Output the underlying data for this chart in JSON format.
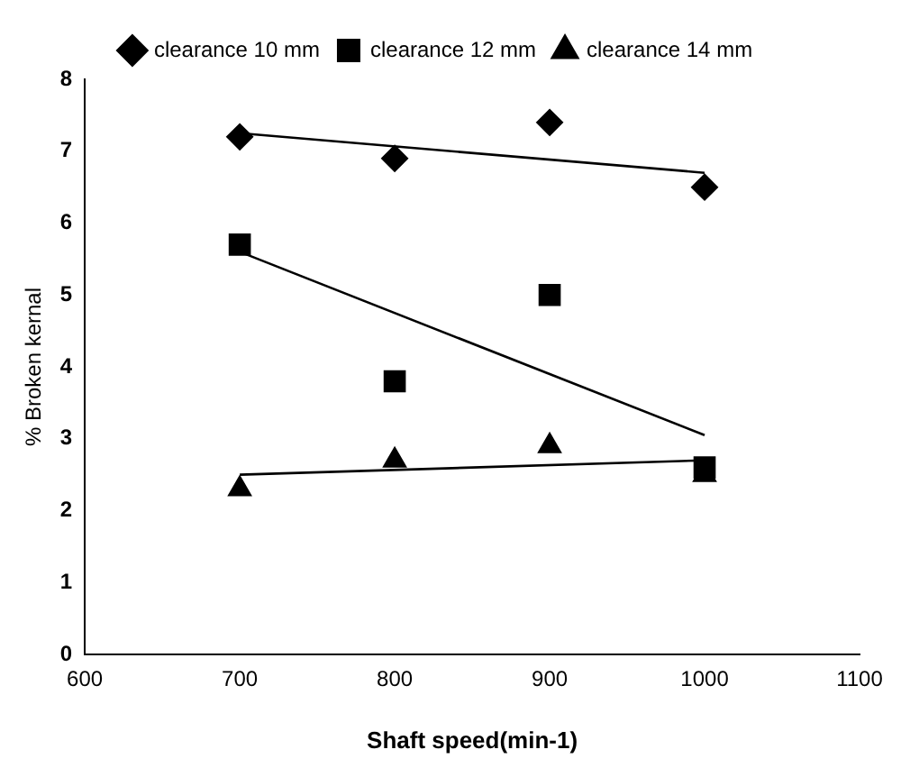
{
  "chart_data": {
    "type": "scatter",
    "xlabel": "Shaft speed(min-1)",
    "ylabel": "% Broken kernal",
    "xlim": [
      600,
      1100
    ],
    "xticks": [
      600,
      700,
      800,
      900,
      1000,
      1100
    ],
    "ylim": [
      0,
      8
    ],
    "yticks": [
      0,
      1,
      2,
      3,
      4,
      5,
      6,
      7,
      8
    ],
    "grid": false,
    "legend": "top",
    "series": [
      {
        "name": "clearance 10 mm",
        "type": "scatter",
        "marker": "diamond",
        "color": "#000000",
        "x": [
          700,
          800,
          900,
          1000
        ],
        "values": [
          7.2,
          6.9,
          7.4,
          6.5
        ]
      },
      {
        "name": "clearance 12 mm",
        "type": "scatter",
        "marker": "square",
        "color": "#000000",
        "x": [
          700,
          800,
          900,
          1000
        ],
        "values": [
          5.7,
          3.8,
          5.0,
          2.6
        ]
      },
      {
        "name": "clearance 14 mm",
        "type": "scatter",
        "marker": "triangle",
        "color": "#000000",
        "x": [
          700,
          800,
          900,
          1000
        ],
        "values": [
          2.3,
          2.7,
          2.9,
          2.5
        ]
      },
      {
        "type": "line",
        "color": "#000000",
        "x": [
          700,
          1000
        ],
        "values": [
          7.25,
          6.7
        ]
      },
      {
        "type": "line",
        "color": "#000000",
        "x": [
          700,
          1000
        ],
        "values": [
          5.6,
          3.05
        ]
      },
      {
        "type": "line",
        "color": "#000000",
        "x": [
          700,
          1000
        ],
        "values": [
          2.5,
          2.7
        ]
      }
    ]
  }
}
